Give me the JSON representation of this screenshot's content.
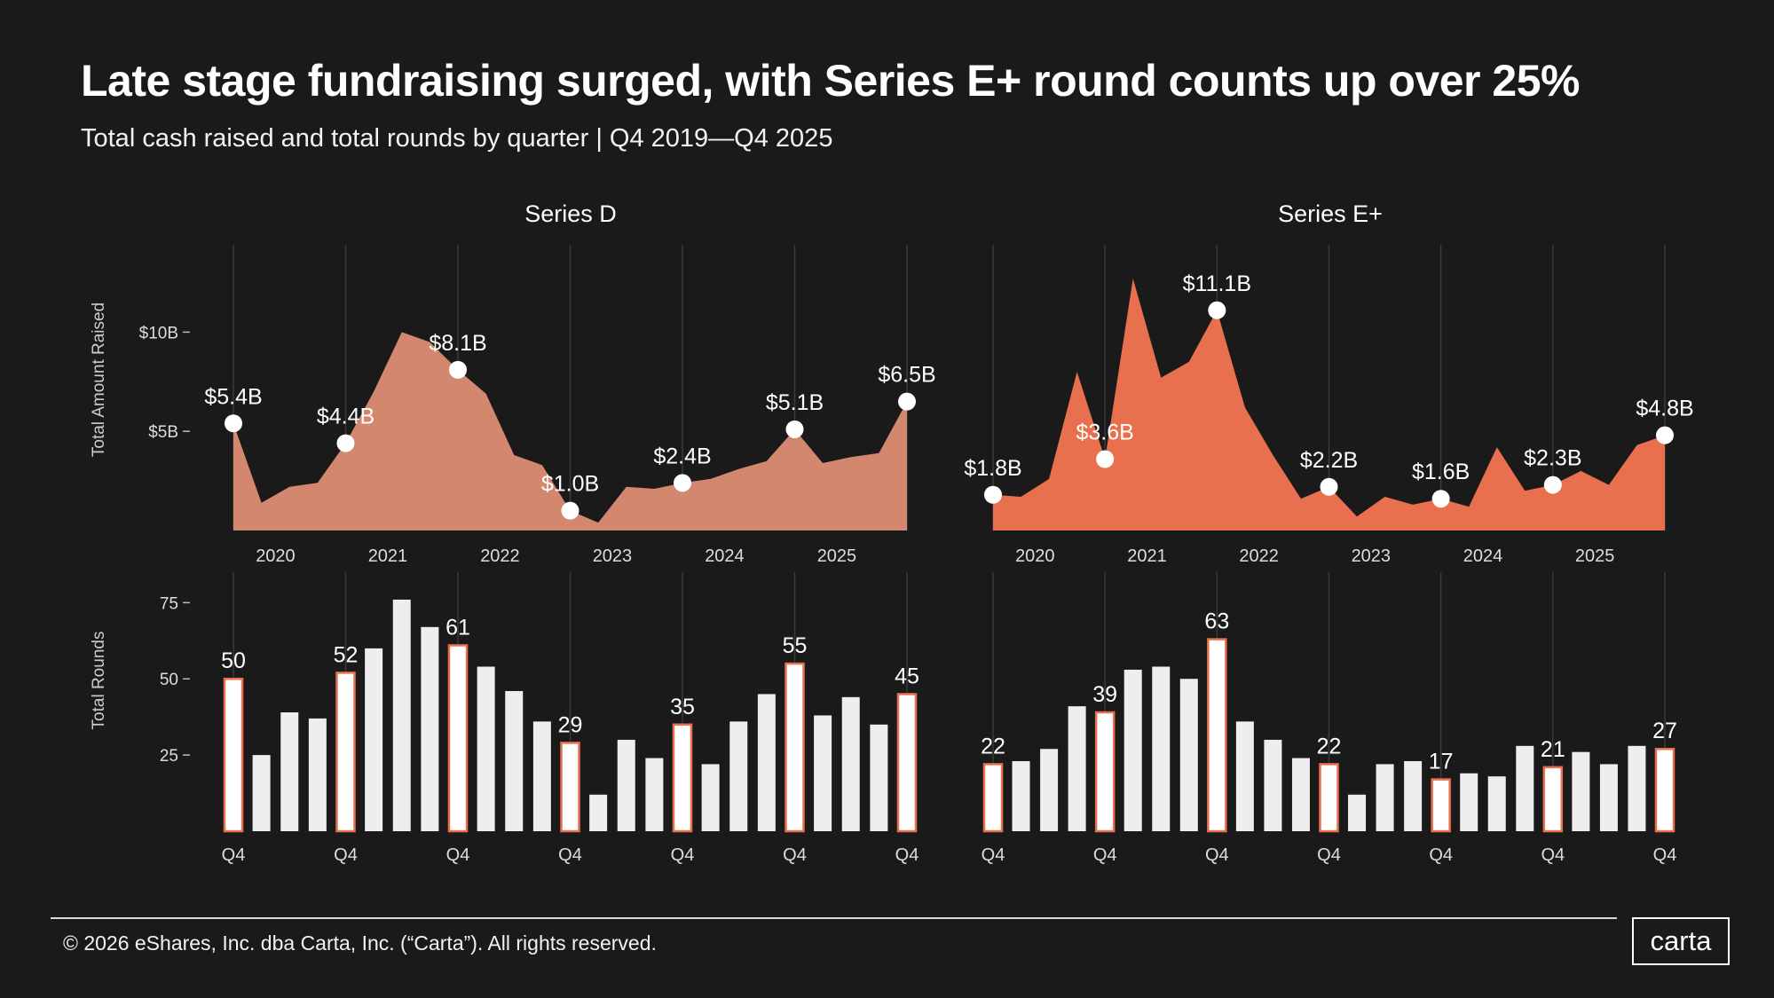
{
  "title": "Late stage fundraising surged, with Series E+ round counts up over 25%",
  "subtitle": "Total cash raised and total rounds by quarter | Q4 2019—Q4 2025",
  "copyright": "© 2026 eShares, Inc. dba Carta, Inc. (“Carta”). All rights reserved.",
  "logo_text": "carta",
  "colors": {
    "background": "#1a1a1a",
    "series_d_area": "#d4876f",
    "series_e_area": "#e8704f",
    "bar_fill": "#eeeeee",
    "bar_highlight_border": "#e8704f",
    "text": "#ffffff"
  },
  "chart_data": [
    {
      "type": "area",
      "panel": "Series D",
      "title": "Series D",
      "ylabel": "Total Amount Raised",
      "unit": "$B",
      "ylim": [
        0,
        14.4
      ],
      "yticks": [
        {
          "value": 5,
          "label": "$5B"
        },
        {
          "value": 10,
          "label": "$10B"
        }
      ],
      "year_ticks": [
        {
          "index": 1.5,
          "label": "2020"
        },
        {
          "index": 5.5,
          "label": "2021"
        },
        {
          "index": 9.5,
          "label": "2022"
        },
        {
          "index": 13.5,
          "label": "2023"
        },
        {
          "index": 17.5,
          "label": "2024"
        },
        {
          "index": 21.5,
          "label": "2025"
        }
      ],
      "x": [
        "Q4 2019",
        "Q1 2020",
        "Q2 2020",
        "Q3 2020",
        "Q4 2020",
        "Q1 2021",
        "Q2 2021",
        "Q3 2021",
        "Q4 2021",
        "Q1 2022",
        "Q2 2022",
        "Q3 2022",
        "Q4 2022",
        "Q1 2023",
        "Q2 2023",
        "Q3 2023",
        "Q4 2023",
        "Q1 2024",
        "Q2 2024",
        "Q3 2024",
        "Q4 2024",
        "Q1 2025",
        "Q2 2025",
        "Q3 2025",
        "Q4 2025"
      ],
      "values": [
        5.4,
        1.4,
        2.2,
        2.4,
        4.4,
        7.0,
        10.0,
        9.5,
        8.1,
        6.9,
        3.8,
        3.3,
        1.0,
        0.4,
        2.2,
        2.1,
        2.4,
        2.6,
        3.1,
        3.5,
        5.1,
        3.4,
        3.7,
        3.9,
        6.5
      ],
      "labeled_points": [
        {
          "index": 0,
          "label": "$5.4B"
        },
        {
          "index": 4,
          "label": "$4.4B"
        },
        {
          "index": 8,
          "label": "$8.1B"
        },
        {
          "index": 12,
          "label": "$1.0B"
        },
        {
          "index": 16,
          "label": "$2.4B"
        },
        {
          "index": 20,
          "label": "$5.1B"
        },
        {
          "index": 24,
          "label": "$6.5B"
        }
      ]
    },
    {
      "type": "area",
      "panel": "Series E+",
      "title": "Series E+",
      "ylabel": "",
      "unit": "$B",
      "ylim": [
        0,
        14.4
      ],
      "yticks": [],
      "year_ticks": [
        {
          "index": 1.5,
          "label": "2020"
        },
        {
          "index": 5.5,
          "label": "2021"
        },
        {
          "index": 9.5,
          "label": "2022"
        },
        {
          "index": 13.5,
          "label": "2023"
        },
        {
          "index": 17.5,
          "label": "2024"
        },
        {
          "index": 21.5,
          "label": "2025"
        }
      ],
      "x": [
        "Q4 2019",
        "Q1 2020",
        "Q2 2020",
        "Q3 2020",
        "Q4 2020",
        "Q1 2021",
        "Q2 2021",
        "Q3 2021",
        "Q4 2021",
        "Q1 2022",
        "Q2 2022",
        "Q3 2022",
        "Q4 2022",
        "Q1 2023",
        "Q2 2023",
        "Q3 2023",
        "Q4 2023",
        "Q1 2024",
        "Q2 2024",
        "Q3 2024",
        "Q4 2024",
        "Q1 2025",
        "Q2 2025",
        "Q3 2025",
        "Q4 2025"
      ],
      "values": [
        1.8,
        1.7,
        2.6,
        8.0,
        3.6,
        12.7,
        7.7,
        8.5,
        11.1,
        6.2,
        3.8,
        1.6,
        2.2,
        0.7,
        1.7,
        1.3,
        1.6,
        1.2,
        4.2,
        2.0,
        2.3,
        3.0,
        2.3,
        4.3,
        4.8
      ],
      "labeled_points": [
        {
          "index": 0,
          "label": "$1.8B"
        },
        {
          "index": 4,
          "label": "$3.6B"
        },
        {
          "index": 8,
          "label": "$11.1B"
        },
        {
          "index": 12,
          "label": "$2.2B"
        },
        {
          "index": 16,
          "label": "$1.6B"
        },
        {
          "index": 20,
          "label": "$2.3B"
        },
        {
          "index": 24,
          "label": "$4.8B"
        }
      ]
    },
    {
      "type": "bar",
      "panel": "Series D",
      "ylabel": "Total Rounds",
      "ylim": [
        0,
        85
      ],
      "yticks": [
        25,
        50,
        75
      ],
      "quarter_tick_label": "Q4",
      "values": [
        50,
        25,
        39,
        37,
        52,
        60,
        76,
        67,
        61,
        54,
        46,
        36,
        29,
        12,
        30,
        24,
        35,
        22,
        36,
        45,
        55,
        38,
        44,
        35,
        45
      ],
      "labeled_bars": [
        0,
        4,
        8,
        12,
        16,
        20,
        24
      ]
    },
    {
      "type": "bar",
      "panel": "Series E+",
      "ylabel": "",
      "ylim": [
        0,
        85
      ],
      "yticks": [],
      "quarter_tick_label": "Q4",
      "values": [
        22,
        23,
        27,
        41,
        39,
        53,
        54,
        50,
        63,
        36,
        30,
        24,
        22,
        12,
        22,
        23,
        17,
        19,
        18,
        28,
        21,
        26,
        22,
        28,
        27
      ],
      "labeled_bars": [
        0,
        4,
        8,
        12,
        16,
        20,
        24
      ]
    }
  ]
}
